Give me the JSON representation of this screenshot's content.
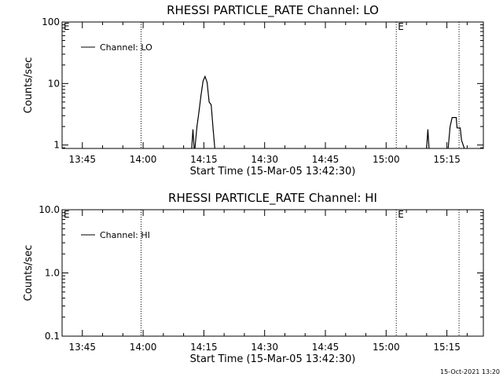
{
  "chart_data": [
    {
      "type": "line",
      "title": "RHESSI PARTICLE_RATE Channel: LO",
      "xlabel": "Start Time (15-Mar-05 13:42:30)",
      "ylabel": "Counts/sec",
      "yscale": "log",
      "xlim": [
        "13:40",
        "15:24"
      ],
      "ylim": [
        0.88,
        100
      ],
      "x_ticks": [
        "13:45",
        "14:00",
        "14:15",
        "14:30",
        "14:45",
        "15:00",
        "15:15"
      ],
      "y_ticks": [
        "1",
        "10",
        "100"
      ],
      "legend": {
        "placement": "top-left",
        "entries": [
          "Channel: LO"
        ]
      },
      "event_markers": [
        {
          "time": "13:40",
          "label": "E"
        },
        {
          "time": "13:59.5",
          "label": ""
        },
        {
          "time": "15:02.5",
          "label": "E"
        },
        {
          "time": "15:18",
          "label": ""
        }
      ],
      "series": [
        {
          "name": "Channel: LO",
          "segments": [
            {
              "x": [
                "14:12.0",
                "14:12.3",
                "14:12.6"
              ],
              "y": [
                0.88,
                1.8,
                0.88
              ]
            },
            {
              "x": [
                "14:12.8",
                "14:13.3",
                "14:13.8",
                "14:14.3",
                "14:14.8",
                "14:15.3",
                "14:15.8",
                "14:16.3",
                "14:16.8",
                "14:17.3",
                "14:17.7"
              ],
              "y": [
                0.88,
                2.0,
                3.5,
                6.5,
                11,
                13,
                10.5,
                5.0,
                4.5,
                1.8,
                0.88
              ]
            },
            {
              "x": [
                "15:10.0",
                "15:10.3",
                "15:10.6"
              ],
              "y": [
                0.88,
                1.8,
                0.88
              ]
            },
            {
              "x": [
                "15:15.3",
                "15:15.8",
                "15:16.3",
                "15:17.3",
                "15:17.5",
                "15:18.3",
                "15:18.6",
                "15:19.3"
              ],
              "y": [
                0.88,
                2.0,
                2.8,
                2.8,
                1.9,
                1.9,
                1.2,
                0.88
              ]
            }
          ]
        }
      ]
    },
    {
      "type": "line",
      "title": "RHESSI PARTICLE_RATE Channel: HI",
      "xlabel": "Start Time (15-Mar-05 13:42:30)",
      "ylabel": "Counts/sec",
      "yscale": "log",
      "xlim": [
        "13:40",
        "15:24"
      ],
      "ylim": [
        0.1,
        10
      ],
      "x_ticks": [
        "13:45",
        "14:00",
        "14:15",
        "14:30",
        "14:45",
        "15:00",
        "15:15"
      ],
      "y_ticks": [
        "0.1",
        "1.0",
        "10.0"
      ],
      "legend": {
        "placement": "top-left",
        "entries": [
          "Channel: HI"
        ]
      },
      "event_markers": [
        {
          "time": "13:40",
          "label": "E"
        },
        {
          "time": "13:59.5",
          "label": ""
        },
        {
          "time": "15:02.5",
          "label": "E"
        },
        {
          "time": "15:18",
          "label": ""
        }
      ],
      "series": [
        {
          "name": "Channel: HI",
          "segments": []
        }
      ]
    }
  ],
  "footer": {
    "timestamp": "15-Oct-2021 13:20"
  },
  "colors": {
    "background": "#ffffff",
    "foreground": "#000000"
  }
}
